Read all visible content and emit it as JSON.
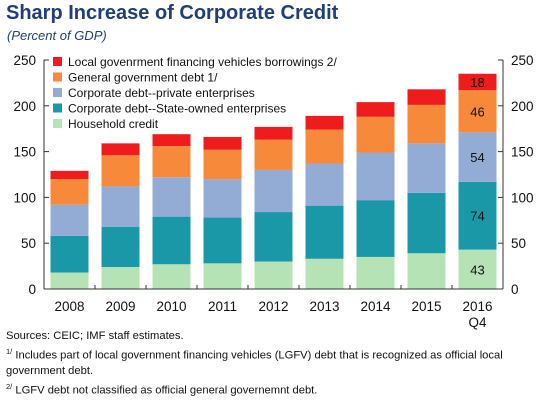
{
  "title": "Sharp Increase of Corporate Credit",
  "subtitle": "(Percent of GDP)",
  "chart_data": {
    "type": "bar",
    "stacked": true,
    "categories": [
      "2008",
      "2009",
      "2010",
      "2011",
      "2012",
      "2013",
      "2014",
      "2015",
      "2016"
    ],
    "category_sublabels": [
      "",
      "",
      "",
      "",
      "",
      "",
      "",
      "",
      "Q4"
    ],
    "ylim": [
      0,
      250
    ],
    "yticks": [
      0,
      50,
      100,
      150,
      200,
      250
    ],
    "grid": false,
    "legend_position": "top-left",
    "series": [
      {
        "name": "Household credit",
        "color": "#b6e3b6",
        "values": [
          18,
          24,
          27,
          28,
          30,
          33,
          35,
          39,
          43
        ]
      },
      {
        "name": "Corporate debt--State-owned enterprises",
        "color": "#1a98a8",
        "values": [
          40,
          44,
          52,
          50,
          54,
          58,
          62,
          66,
          74
        ]
      },
      {
        "name": "Corporate debt--private enterprises",
        "color": "#92acd6",
        "values": [
          34,
          44,
          43,
          42,
          46,
          46,
          52,
          54,
          54
        ]
      },
      {
        "name": "General government debt 1/",
        "color": "#f68a3a",
        "values": [
          28,
          34,
          34,
          32,
          33,
          37,
          39,
          42,
          46
        ]
      },
      {
        "name": "Local govenrment financing vehicles borrowings 2/",
        "color": "#ee1c1c",
        "values": [
          9,
          13,
          13,
          14,
          14,
          15,
          16,
          17,
          18
        ]
      }
    ],
    "data_labels": {
      "category": "2016",
      "values": [
        "43",
        "74",
        "54",
        "46",
        "18"
      ]
    }
  },
  "notes": {
    "sources": "Sources: CEIC; IMF staff estimates.",
    "note1_marker": "1/",
    "note1_text": " Includes part of local government financing vehicles (LGFV) debt that is recognized as official local government debt.",
    "note2_marker": "2/",
    "note2_text": " LGFV debt not classified as official general governemnt debt."
  }
}
